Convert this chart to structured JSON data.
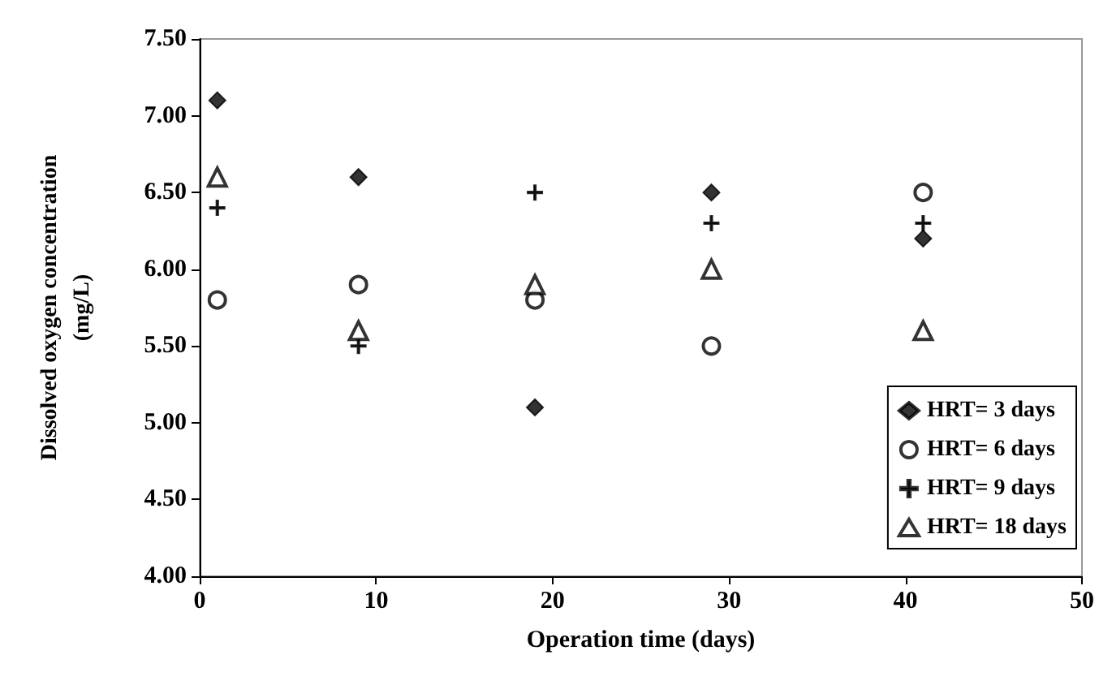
{
  "chart_data": {
    "type": "scatter",
    "xlabel": "Operation time (days)",
    "ylabel": "Dissolved oxygen concentration\n(mg/L)",
    "x": [
      1,
      9,
      19,
      29,
      41
    ],
    "series": [
      {
        "name": "HRT= 3 days",
        "color": "#000000",
        "marker": "diamond",
        "values": [
          7.1,
          6.6,
          5.1,
          6.5,
          6.2
        ]
      },
      {
        "name": "HRT= 6 days",
        "color": "#000000",
        "marker": "circle",
        "values": [
          5.8,
          5.9,
          5.8,
          5.5,
          6.5
        ]
      },
      {
        "name": "HRT= 9 days",
        "color": "#000000",
        "marker": "cross",
        "values": [
          6.4,
          5.5,
          6.5,
          6.3,
          6.3
        ]
      },
      {
        "name": "HRT= 18 days",
        "color": "#000000",
        "marker": "triangle",
        "values": [
          6.6,
          5.6,
          5.9,
          6.0,
          5.6
        ]
      }
    ],
    "xlim": [
      0,
      50
    ],
    "xticks": [
      0,
      10,
      20,
      30,
      40,
      50
    ],
    "ylim": [
      4,
      7.5
    ],
    "yticks": [
      {
        "value": 4,
        "label": "4.00"
      },
      {
        "value": 4.5,
        "label": "4.50"
      },
      {
        "value": 5,
        "label": "5.00"
      },
      {
        "value": 5.5,
        "label": "5.50"
      },
      {
        "value": 6,
        "label": "6.00"
      },
      {
        "value": 6.5,
        "label": "6.50"
      },
      {
        "value": 7,
        "label": "7.00"
      },
      {
        "value": 7.5,
        "label": "7.50"
      }
    ],
    "grid": false,
    "legend": "bottom right"
  }
}
